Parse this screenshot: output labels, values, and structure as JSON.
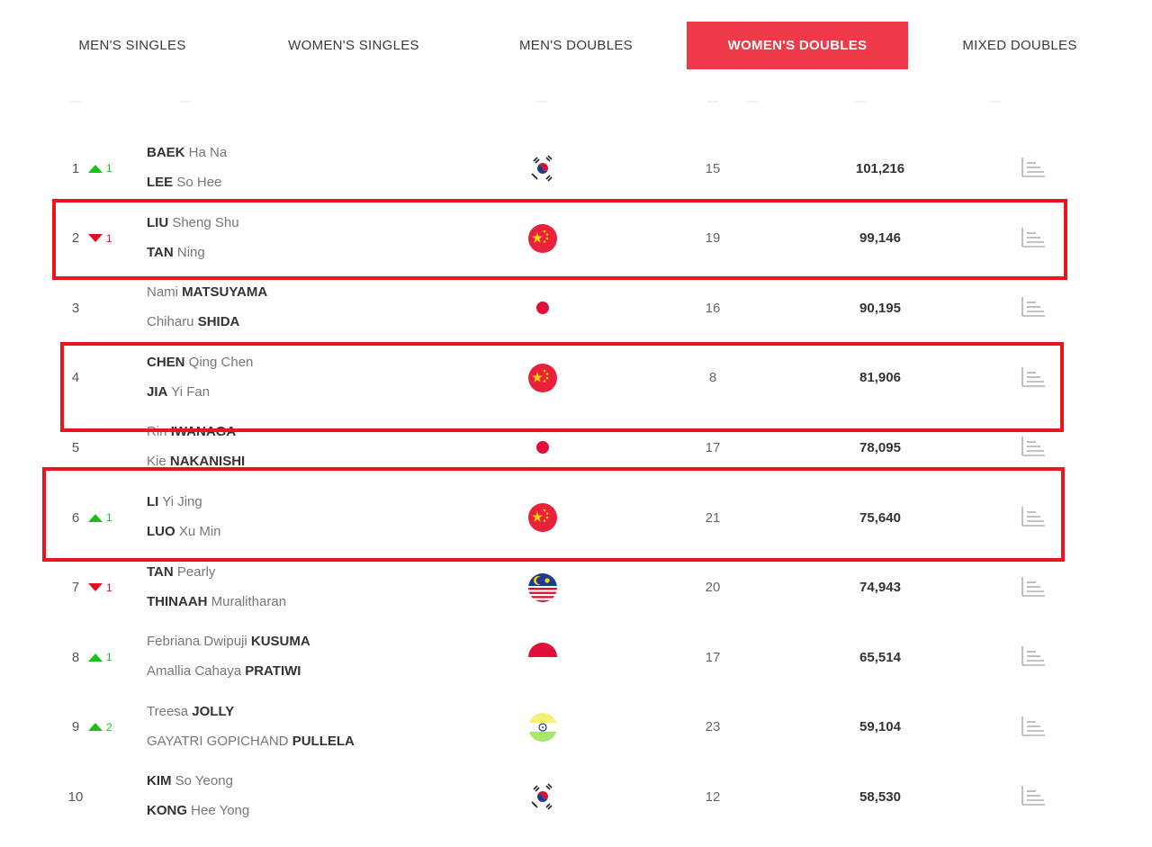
{
  "tabs": [
    {
      "label": "MEN'S SINGLES",
      "active": false
    },
    {
      "label": "WOMEN'S SINGLES",
      "active": false
    },
    {
      "label": "MEN'S DOUBLES",
      "active": false
    },
    {
      "label": "WOMEN'S DOUBLES",
      "active": true
    },
    {
      "label": "MIXED DOUBLES",
      "active": false
    }
  ],
  "colors": {
    "accent": "#ef3a4a",
    "up": "#17c317",
    "down": "#e0101e",
    "highlight": "#e8161e"
  },
  "rows": [
    {
      "rank": "1",
      "move": "1",
      "dir": "up",
      "p1": {
        "first": "BAEK",
        "second": " Ha Na",
        "bold_first": true
      },
      "p2": {
        "first": "LEE",
        "second": " So Hee",
        "bold_first": true
      },
      "flag": "korea-flag-icon",
      "tournaments": "15",
      "points": "101,216",
      "highlighted": false
    },
    {
      "rank": "2",
      "move": "1",
      "dir": "down",
      "p1": {
        "first": "LIU",
        "second": " Sheng Shu",
        "bold_first": true
      },
      "p2": {
        "first": "TAN",
        "second": " Ning",
        "bold_first": true
      },
      "flag": "china-flag-icon",
      "tournaments": "19",
      "points": "99,146",
      "highlighted": true
    },
    {
      "rank": "3",
      "move": "",
      "dir": "none",
      "p1": {
        "first": "Nami ",
        "second": "MATSUYAMA",
        "bold_first": false
      },
      "p2": {
        "first": "Chiharu ",
        "second": "SHIDA",
        "bold_first": false
      },
      "flag": "japan-flag-icon",
      "tournaments": "16",
      "points": "90,195",
      "highlighted": false
    },
    {
      "rank": "4",
      "move": "",
      "dir": "none",
      "p1": {
        "first": "CHEN",
        "second": " Qing Chen",
        "bold_first": true
      },
      "p2": {
        "first": "JIA",
        "second": " Yi Fan",
        "bold_first": true
      },
      "flag": "china-flag-icon",
      "tournaments": "8",
      "points": "81,906",
      "highlighted": true
    },
    {
      "rank": "5",
      "move": "",
      "dir": "none",
      "p1": {
        "first": "Rin ",
        "second": "IWANAGA",
        "bold_first": false
      },
      "p2": {
        "first": "Kie ",
        "second": "NAKANISHI",
        "bold_first": false
      },
      "flag": "japan-flag-icon",
      "tournaments": "17",
      "points": "78,095",
      "highlighted": false
    },
    {
      "rank": "6",
      "move": "1",
      "dir": "up",
      "p1": {
        "first": "LI",
        "second": " Yi Jing",
        "bold_first": true
      },
      "p2": {
        "first": "LUO",
        "second": " Xu Min",
        "bold_first": true
      },
      "flag": "china-flag-icon",
      "tournaments": "21",
      "points": "75,640",
      "highlighted": true
    },
    {
      "rank": "7",
      "move": "1",
      "dir": "down",
      "p1": {
        "first": "TAN",
        "second": " Pearly",
        "bold_first": true
      },
      "p2": {
        "first": "THINAAH",
        "second": " Muralitharan",
        "bold_first": true
      },
      "flag": "malaysia-flag-icon",
      "tournaments": "20",
      "points": "74,943",
      "highlighted": false
    },
    {
      "rank": "8",
      "move": "1",
      "dir": "up",
      "p1": {
        "first": "Febriana Dwipuji ",
        "second": "KUSUMA",
        "bold_first": false
      },
      "p2": {
        "first": "Amallia Cahaya ",
        "second": "PRATIWI",
        "bold_first": false
      },
      "flag": "indonesia-flag-icon",
      "tournaments": "17",
      "points": "65,514",
      "highlighted": false
    },
    {
      "rank": "9",
      "move": "2",
      "dir": "up",
      "p1": {
        "first": "Treesa ",
        "second": "JOLLY",
        "bold_first": false
      },
      "p2": {
        "first": "GAYATRI GOPICHAND ",
        "second": "PULLELA",
        "bold_first": false
      },
      "flag": "india-flag-icon",
      "tournaments": "23",
      "points": "59,104",
      "highlighted": false
    },
    {
      "rank": "10",
      "move": "",
      "dir": "none",
      "p1": {
        "first": "KIM",
        "second": " So Yeong",
        "bold_first": true
      },
      "p2": {
        "first": "KONG",
        "second": " Hee Yong",
        "bold_first": true
      },
      "flag": "korea-flag-icon",
      "tournaments": "12",
      "points": "58,530",
      "highlighted": false
    }
  ]
}
